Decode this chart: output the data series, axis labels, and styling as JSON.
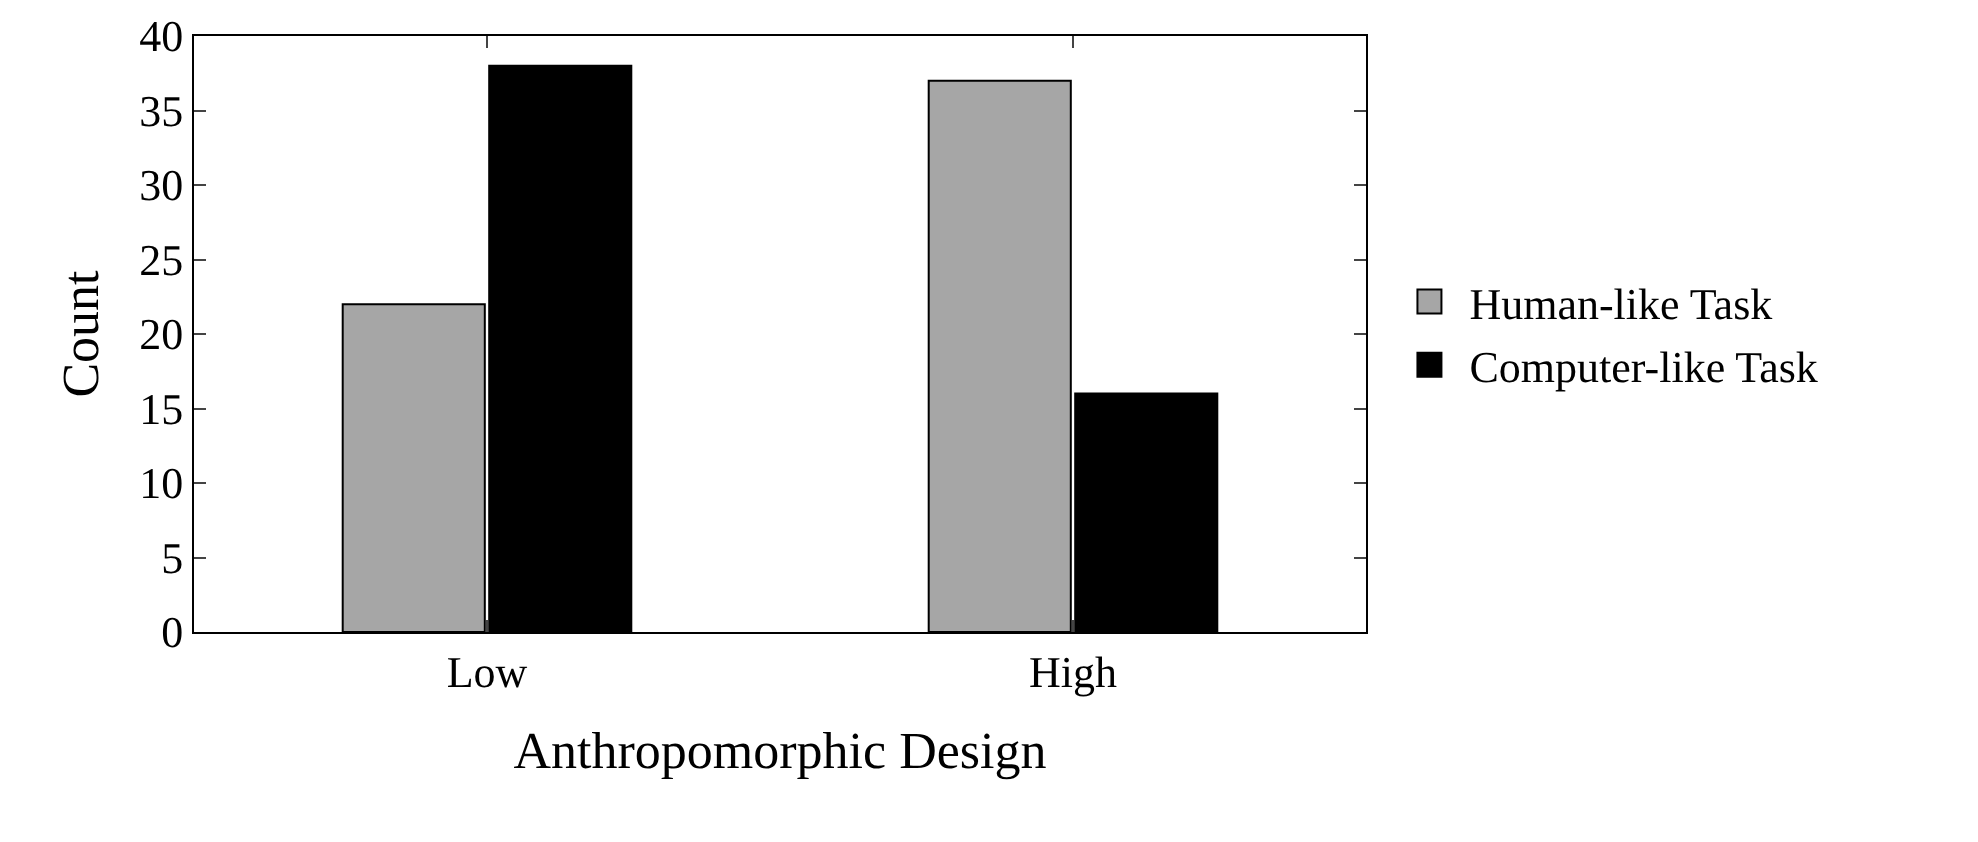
{
  "chart_data": {
    "type": "bar",
    "xlabel": "Anthropomorphic Design",
    "ylabel": "Count",
    "categories": [
      "Low",
      "High"
    ],
    "series": [
      {
        "name": "Human-like Task",
        "color": "#a6a6a6",
        "values": [
          22,
          37
        ]
      },
      {
        "name": "Computer-like Task",
        "color": "#000000",
        "values": [
          38,
          16
        ]
      }
    ],
    "ylim": [
      0,
      40
    ],
    "yticks": [
      0,
      5,
      10,
      15,
      20,
      25,
      30,
      35,
      40
    ],
    "grid": false,
    "legend": "right"
  }
}
